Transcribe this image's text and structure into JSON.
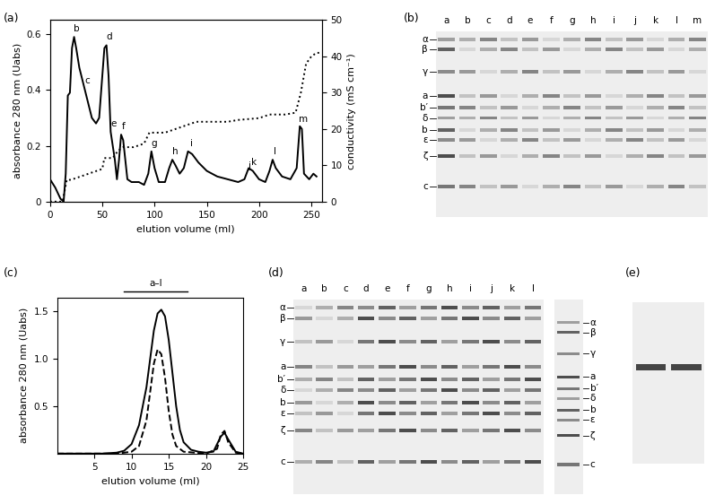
{
  "chart_data": [
    {
      "panel": "(a)",
      "type": "line",
      "x_label": "elution volume (ml)",
      "y_label": "absorbance 280 nm (Uabs)",
      "y2_label": "conductivity (mS cm⁻¹)",
      "xlim": [
        0,
        260
      ],
      "xticks": [
        0,
        50,
        100,
        150,
        200,
        250
      ],
      "ylim": [
        0,
        0.65
      ],
      "yticks": [
        0,
        0.2,
        0.4,
        0.6
      ],
      "y2lim": [
        0,
        50
      ],
      "y2ticks": [
        0,
        10,
        20,
        30,
        40,
        50
      ],
      "series": [
        {
          "color": "#000000",
          "line_style": "solid",
          "x": [
            0,
            5,
            10,
            13,
            15,
            17,
            19,
            21,
            23,
            25,
            28,
            32,
            36,
            40,
            44,
            47,
            50,
            52,
            54,
            56,
            58,
            60,
            62,
            64,
            66,
            68,
            70,
            72,
            74,
            78,
            85,
            90,
            94,
            97,
            100,
            104,
            110,
            114,
            117,
            120,
            124,
            128,
            132,
            136,
            142,
            150,
            160,
            170,
            180,
            186,
            190,
            194,
            200,
            206,
            210,
            213,
            216,
            222,
            230,
            236,
            239,
            241,
            243,
            248,
            252,
            255
          ],
          "values": [
            0.08,
            0.05,
            0.01,
            0.0,
            0.1,
            0.38,
            0.39,
            0.55,
            0.59,
            0.55,
            0.48,
            0.42,
            0.36,
            0.3,
            0.28,
            0.3,
            0.45,
            0.55,
            0.56,
            0.45,
            0.25,
            0.2,
            0.15,
            0.08,
            0.15,
            0.24,
            0.22,
            0.15,
            0.08,
            0.07,
            0.07,
            0.06,
            0.1,
            0.18,
            0.12,
            0.07,
            0.07,
            0.12,
            0.15,
            0.13,
            0.1,
            0.12,
            0.18,
            0.17,
            0.14,
            0.11,
            0.09,
            0.08,
            0.07,
            0.08,
            0.12,
            0.11,
            0.08,
            0.07,
            0.11,
            0.15,
            0.12,
            0.09,
            0.08,
            0.12,
            0.27,
            0.26,
            0.1,
            0.08,
            0.1,
            0.09
          ]
        },
        {
          "color": "#000000",
          "line_style": "dotted",
          "axis": "y2",
          "x": [
            0,
            12,
            16,
            20,
            30,
            40,
            50,
            52,
            60,
            65,
            70,
            80,
            90,
            95,
            110,
            120,
            130,
            140,
            170,
            180,
            200,
            210,
            225,
            235,
            240,
            245,
            250,
            255,
            258
          ],
          "values": [
            0,
            0,
            6,
            6,
            7,
            8,
            9,
            12,
            12,
            14,
            15,
            15,
            16,
            19,
            19,
            20,
            21,
            22,
            22,
            22.5,
            23,
            24,
            24,
            24.5,
            30,
            38,
            40,
            41,
            41
          ]
        }
      ],
      "peaks": [
        {
          "label": "b",
          "x": 23
        },
        {
          "label": "c",
          "x": 33
        },
        {
          "label": "d",
          "x": 54
        },
        {
          "label": "e",
          "x": 58
        },
        {
          "label": "f",
          "x": 68
        },
        {
          "label": "g",
          "x": 97
        },
        {
          "label": "h",
          "x": 117
        },
        {
          "label": "i",
          "x": 133
        },
        {
          "label": "j",
          "x": 188
        },
        {
          "label": "k",
          "x": 193
        },
        {
          "label": "l",
          "x": 213
        },
        {
          "label": "m",
          "x": 240
        }
      ]
    },
    {
      "panel": "(b)",
      "type": "gel",
      "lanes": [
        "a",
        "b",
        "c",
        "d",
        "e",
        "f",
        "g",
        "h",
        "i",
        "j",
        "k",
        "l",
        "m"
      ],
      "bands_left": [
        "α",
        "β",
        "γ",
        "a",
        "b′",
        "δ",
        "b",
        "ε",
        "ζ",
        "c"
      ]
    },
    {
      "panel": "(c)",
      "type": "line",
      "x_label": "elution volume (ml)",
      "y_label": "absorbance 280 nm (Uabs)",
      "xlim": [
        0,
        25
      ],
      "xticks": [
        5,
        10,
        15,
        20,
        25
      ],
      "ylim": [
        0,
        1.65
      ],
      "yticks": [
        0.5,
        {
          "value": 1.0,
          "label": "1.0"
        },
        1.5
      ],
      "fraction_bar": {
        "label": "a–l",
        "x": [
          9,
          17.5
        ]
      },
      "series": [
        {
          "color": "#000000",
          "line_style": "solid",
          "x": [
            0,
            6,
            8,
            9,
            10,
            11,
            12,
            12.5,
            13,
            13.5,
            14,
            14.5,
            15,
            15.5,
            16,
            16.5,
            17,
            18,
            19,
            20,
            21,
            22,
            22.5,
            23,
            24,
            25
          ],
          "values": [
            0,
            0,
            0.01,
            0.03,
            0.1,
            0.3,
            0.7,
            1.0,
            1.3,
            1.48,
            1.52,
            1.45,
            1.2,
            0.85,
            0.5,
            0.25,
            0.12,
            0.04,
            0.02,
            0.01,
            0.02,
            0.18,
            0.22,
            0.15,
            0.02,
            0
          ]
        },
        {
          "color": "#000000",
          "line_style": "dashed",
          "x": [
            0,
            8,
            10,
            11,
            12,
            12.5,
            13,
            13.5,
            14,
            14.5,
            15,
            15.5,
            16,
            17,
            20,
            21.5,
            22,
            22.5,
            23,
            24,
            25
          ],
          "values": [
            0,
            0,
            0.02,
            0.08,
            0.35,
            0.65,
            0.95,
            1.1,
            1.05,
            0.8,
            0.45,
            0.2,
            0.08,
            0.02,
            0,
            0.05,
            0.2,
            0.24,
            0.12,
            0.01,
            0
          ]
        }
      ]
    },
    {
      "panel": "(d)",
      "type": "gel",
      "lanes": [
        "a",
        "b",
        "c",
        "d",
        "e",
        "f",
        "g",
        "h",
        "i",
        "j",
        "k",
        "l"
      ],
      "bands_left": [
        "α",
        "β",
        "γ",
        "a",
        "b′",
        "δ",
        "b",
        "ε",
        "ζ",
        "c"
      ],
      "bands_right": [
        "α",
        "β",
        "γ",
        "a",
        "b′",
        "δ",
        "b",
        "ε",
        "ζ",
        "c"
      ]
    },
    {
      "panel": "(e)",
      "type": "gel",
      "lanes": [
        null,
        null
      ]
    }
  ]
}
